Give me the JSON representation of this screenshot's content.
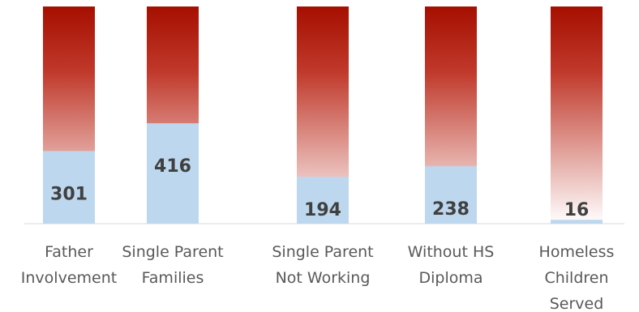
{
  "chart_data": {
    "type": "bar",
    "categories": [
      [
        "Father",
        "Involvement"
      ],
      [
        "Single Parent",
        "Families"
      ],
      [
        "Single Parent",
        "Not Working"
      ],
      [
        "Without HS",
        "Diploma"
      ],
      [
        "Homeless",
        "Children",
        "Served"
      ]
    ],
    "series": [
      {
        "values": [
          301,
          416,
          194,
          238,
          16
        ]
      }
    ],
    "ylim": [
      0,
      900
    ],
    "grid": false,
    "legend": "none",
    "colors": {
      "value_bar": "#bdd7ee",
      "background_bar_top": "#a50f00",
      "background_bar_bottom": "#ffffff",
      "baseline": "#d9d9d9",
      "value_text": "#404040",
      "category_text": "#595959"
    }
  }
}
